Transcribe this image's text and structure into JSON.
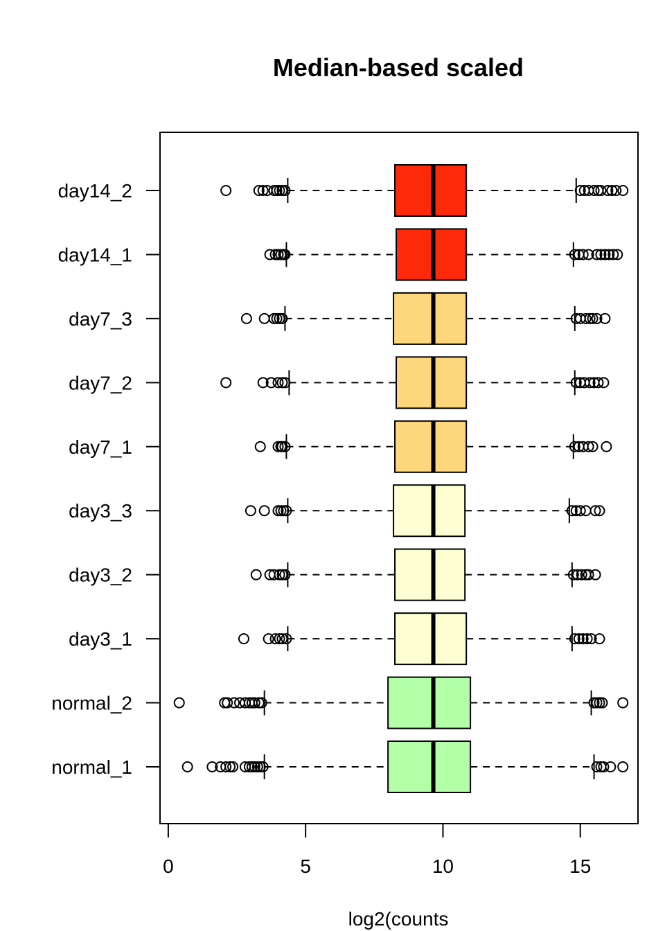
{
  "chart_data": {
    "type": "boxplot",
    "orientation": "horizontal",
    "title": "Median-based scaled",
    "xlabel": "log2(counts",
    "ylabel": "",
    "xlim": [
      -0.3,
      17.1
    ],
    "xticks": [
      0,
      5,
      10,
      15
    ],
    "xtick_labels": [
      "0",
      "5",
      "10",
      "15"
    ],
    "grid": false,
    "legend": "none",
    "series": [
      {
        "name": "day14_2",
        "color": "#FC2A08",
        "whisker_low": 4.35,
        "q1": 8.25,
        "median": 9.65,
        "q3": 10.85,
        "whisker_high": 14.85,
        "outliers": [
          2.1,
          3.3,
          3.45,
          3.6,
          3.85,
          3.95,
          4.05,
          4.15,
          4.25,
          15.0,
          15.15,
          15.3,
          15.5,
          15.65,
          15.75,
          16.0,
          16.15,
          16.3,
          16.55
        ]
      },
      {
        "name": "day14_1",
        "color": "#FC2A08",
        "whisker_low": 4.3,
        "q1": 8.3,
        "median": 9.65,
        "q3": 10.85,
        "whisker_high": 14.75,
        "outliers": [
          3.7,
          3.9,
          4.0,
          4.1,
          4.2,
          4.25,
          14.8,
          14.95,
          15.1,
          15.3,
          15.6,
          15.75,
          15.9,
          16.05,
          16.2,
          16.35
        ]
      },
      {
        "name": "day7_3",
        "color": "#FED77C",
        "whisker_low": 4.25,
        "q1": 8.2,
        "median": 9.65,
        "q3": 10.85,
        "whisker_high": 14.8,
        "outliers": [
          2.85,
          3.5,
          3.85,
          3.95,
          4.05,
          4.15,
          14.85,
          15.0,
          15.2,
          15.35,
          15.45,
          15.6,
          15.9
        ]
      },
      {
        "name": "day7_2",
        "color": "#FED77C",
        "whisker_low": 4.4,
        "q1": 8.3,
        "median": 9.65,
        "q3": 10.85,
        "whisker_high": 14.8,
        "outliers": [
          2.1,
          3.45,
          3.75,
          4.0,
          4.15,
          4.25,
          14.85,
          15.0,
          15.15,
          15.35,
          15.5,
          15.65,
          15.85
        ]
      },
      {
        "name": "day7_1",
        "color": "#FED77C",
        "whisker_low": 4.3,
        "q1": 8.25,
        "median": 9.65,
        "q3": 10.85,
        "whisker_high": 14.75,
        "outliers": [
          3.35,
          4.0,
          4.1,
          4.15,
          4.25,
          14.8,
          14.95,
          15.1,
          15.3,
          15.45,
          15.95
        ]
      },
      {
        "name": "day3_3",
        "color": "#FEFED3",
        "whisker_low": 4.35,
        "q1": 8.2,
        "median": 9.65,
        "q3": 10.8,
        "whisker_high": 14.6,
        "outliers": [
          3.0,
          3.5,
          4.0,
          4.1,
          4.2,
          4.3,
          14.7,
          14.85,
          15.0,
          15.2,
          15.55,
          15.7
        ]
      },
      {
        "name": "day3_2",
        "color": "#FEFED3",
        "whisker_low": 4.35,
        "q1": 8.25,
        "median": 9.65,
        "q3": 10.8,
        "whisker_high": 14.7,
        "outliers": [
          3.2,
          3.7,
          3.85,
          4.05,
          4.15,
          4.25,
          14.75,
          14.9,
          15.05,
          15.2,
          15.3,
          15.55
        ]
      },
      {
        "name": "day3_1",
        "color": "#FEFED3",
        "whisker_low": 4.35,
        "q1": 8.25,
        "median": 9.65,
        "q3": 10.85,
        "whisker_high": 14.7,
        "outliers": [
          2.75,
          3.65,
          3.9,
          4.05,
          4.15,
          4.3,
          14.8,
          14.95,
          15.1,
          15.25,
          15.4,
          15.7
        ]
      },
      {
        "name": "normal_2",
        "color": "#B2FFA8",
        "whisker_low": 3.5,
        "q1": 8.0,
        "median": 9.65,
        "q3": 11.0,
        "whisker_high": 15.4,
        "outliers": [
          0.4,
          2.05,
          2.15,
          2.4,
          2.6,
          2.8,
          2.95,
          3.05,
          3.15,
          3.3,
          3.4,
          15.5,
          15.6,
          15.7,
          15.8,
          16.55
        ]
      },
      {
        "name": "normal_1",
        "color": "#B2FFA8",
        "whisker_low": 3.5,
        "q1": 8.0,
        "median": 9.65,
        "q3": 11.0,
        "whisker_high": 15.5,
        "outliers": [
          0.7,
          1.6,
          1.9,
          2.1,
          2.25,
          2.35,
          2.8,
          2.95,
          3.05,
          3.15,
          3.25,
          3.35,
          3.45,
          15.6,
          15.75,
          15.85,
          16.1,
          16.55
        ]
      }
    ]
  }
}
